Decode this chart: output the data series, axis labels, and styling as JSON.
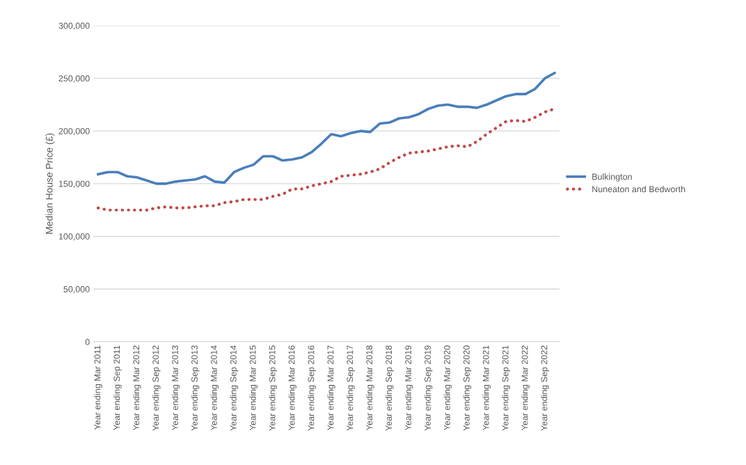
{
  "chart_data": {
    "type": "line",
    "ylabel": "Median House Price (£)",
    "categories": [
      "Year ending Mar 2011",
      null,
      "Year ending Sep 2011",
      null,
      "Year ending Mar 2012",
      null,
      "Year ending Sep 2012",
      null,
      "Year ending Mar 2013",
      null,
      "Year ending Sep 2013",
      null,
      "Year ending Mar 2014",
      null,
      "Year ending Sep 2014",
      null,
      "Year ending Mar 2015",
      null,
      "Year ending Sep 2015",
      null,
      "Year ending Mar 2016",
      null,
      "Year ending Sep 2016",
      null,
      "Year ending Mar 2017",
      null,
      "Year ending Sep 2017",
      null,
      "Year ending Mar 2018",
      null,
      "Year ending Sep 2018",
      null,
      "Year ending Mar 2019",
      null,
      "Year ending Sep 2019",
      null,
      "Year ending Mar 2020",
      null,
      "Year ending Sep 2020",
      null,
      "Year ending Mar 2021",
      null,
      "Year ending Sep 2021",
      null,
      "Year ending Mar 2022",
      null,
      "Year ending Sep 2022",
      null
    ],
    "series": [
      {
        "name": "Bulkington",
        "color": "#4a7ebb",
        "line_style": "solid",
        "values": [
          159000,
          161000,
          161000,
          157000,
          156000,
          153000,
          150000,
          150000,
          152000,
          153000,
          154000,
          157000,
          152000,
          151000,
          161000,
          165000,
          168000,
          176000,
          176000,
          172000,
          173000,
          175000,
          180000,
          188000,
          197000,
          195000,
          198000,
          200000,
          199000,
          207000,
          208000,
          212000,
          213000,
          216000,
          221000,
          224000,
          225000,
          223000,
          223000,
          222000,
          225000,
          229000,
          233000,
          235000,
          235000,
          240000,
          250000,
          255000
        ]
      },
      {
        "name": "Nuneaton and Bedworth",
        "color": "#be4b48",
        "line_style": "dotted",
        "values": [
          127000,
          125000,
          125000,
          125000,
          125000,
          125000,
          127000,
          128000,
          127000,
          127000,
          128000,
          129000,
          129000,
          132000,
          133000,
          135000,
          135000,
          135000,
          138000,
          140000,
          145000,
          145000,
          148000,
          150000,
          152000,
          157000,
          158000,
          159000,
          161000,
          164000,
          170000,
          175000,
          179000,
          180000,
          181000,
          183000,
          185000,
          186000,
          185000,
          190000,
          197000,
          203000,
          209000,
          210000,
          209000,
          213000,
          218000,
          221000
        ]
      }
    ],
    "ylim": [
      0,
      300000
    ],
    "yticks": [
      {
        "value": 0,
        "label": "0"
      },
      {
        "value": 50000,
        "label": "50,000"
      },
      {
        "value": 100000,
        "label": "100,000"
      },
      {
        "value": 150000,
        "label": "150,000"
      },
      {
        "value": 200000,
        "label": "200,000"
      },
      {
        "value": 250000,
        "label": "250,000"
      },
      {
        "value": 300000,
        "label": "300,000"
      }
    ],
    "grid": "y",
    "legend": "right",
    "marker": "none"
  }
}
